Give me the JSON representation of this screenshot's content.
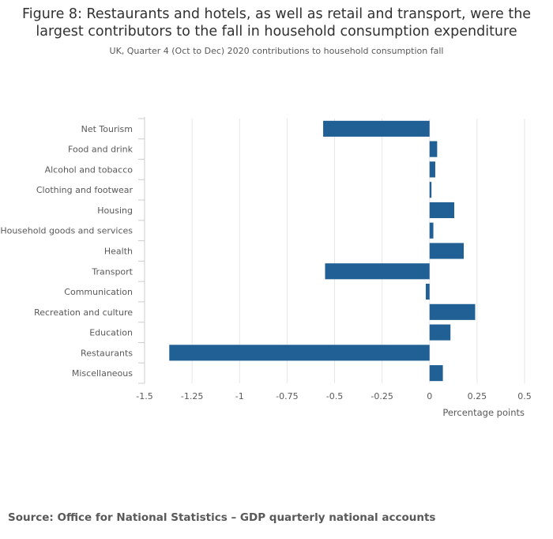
{
  "header": {
    "title_line1": "Figure 8: Restaurants and hotels, as well as retail and transport, were the",
    "title_line2": "largest contributors to the fall in household consumption expenditure",
    "subtitle": "UK, Quarter 4 (Oct to Dec) 2020 contributions to household consumption fall"
  },
  "footer": {
    "source": "Source: Office for National Statistics – GDP quarterly national accounts"
  },
  "colors": {
    "bar": "#206095",
    "grid": "#e6e6e6",
    "axis_text": "#595959"
  },
  "chart_data": {
    "type": "bar",
    "orientation": "horizontal",
    "title": "Figure 8: Restaurants and hotels, as well as retail and transport, were the largest contributors to the fall in household consumption expenditure",
    "subtitle": "UK, Quarter 4 (Oct to Dec) 2020 contributions to household consumption fall",
    "xlabel": "Percentage points",
    "ylabel": "",
    "xlim": [
      -1.5,
      0.5
    ],
    "xticks": [
      -1.5,
      -1.25,
      -1,
      -0.75,
      -0.5,
      -0.25,
      0,
      0.25,
      0.5
    ],
    "xtick_labels": [
      "-1.5",
      "-1.25",
      "-1",
      "-0.75",
      "-0.5",
      "-0.25",
      "0",
      "0.25",
      "0.5"
    ],
    "grid": true,
    "categories": [
      "Net Tourism",
      "Food and drink",
      "Alcohol and tobacco",
      "Clothing and footwear",
      "Housing",
      "Household goods and services",
      "Health",
      "Transport",
      "Communication",
      "Recreation and culture",
      "Education",
      "Restaurants",
      "Miscellaneous"
    ],
    "values": [
      -0.56,
      0.04,
      0.03,
      0.01,
      0.13,
      0.02,
      0.18,
      -0.55,
      -0.02,
      0.24,
      0.11,
      -1.37,
      0.07
    ]
  }
}
